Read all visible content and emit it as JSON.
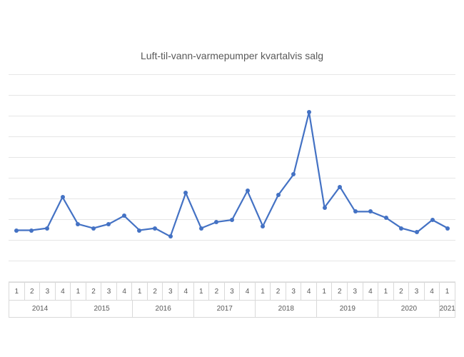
{
  "chart": {
    "type": "line",
    "title": "Luft-til-vann-varmepumper kvartalvis salg",
    "title_fontsize": 14,
    "title_color": "#595959",
    "background_color": "#ffffff",
    "grid_color": "#e6e6e6",
    "axis_border_color": "#d9d9d9",
    "line_color": "#4472c4",
    "line_width": 2.2,
    "marker_style": "circle",
    "marker_radius": 3,
    "marker_fill": "#4472c4",
    "ylim": [
      0,
      10
    ],
    "ytick_step": 1,
    "ytick_count": 11,
    "show_y_labels": false,
    "x_quarter_labels": [
      "1",
      "2",
      "3",
      "4",
      "1",
      "2",
      "3",
      "4",
      "1",
      "2",
      "3",
      "4",
      "1",
      "2",
      "3",
      "4",
      "1",
      "2",
      "3",
      "4",
      "1",
      "2",
      "3",
      "4",
      "1",
      "2",
      "3",
      "4",
      "1"
    ],
    "x_year_groups": [
      {
        "label": "2014",
        "span": 4
      },
      {
        "label": "2015",
        "span": 4
      },
      {
        "label": "2016",
        "span": 4
      },
      {
        "label": "2017",
        "span": 4
      },
      {
        "label": "2018",
        "span": 4
      },
      {
        "label": "2019",
        "span": 4
      },
      {
        "label": "2020",
        "span": 4
      },
      {
        "label": "2021",
        "span": 1
      }
    ],
    "values": [
      2.5,
      2.5,
      2.6,
      4.1,
      2.8,
      2.6,
      2.8,
      3.2,
      2.5,
      2.6,
      2.2,
      4.3,
      2.6,
      2.9,
      3.0,
      4.4,
      2.7,
      4.2,
      5.2,
      8.2,
      3.6,
      4.6,
      3.4,
      3.4,
      3.1,
      2.6,
      2.4,
      3.0,
      2.6
    ],
    "x_label_fontsize": 10,
    "x_label_color": "#595959"
  }
}
